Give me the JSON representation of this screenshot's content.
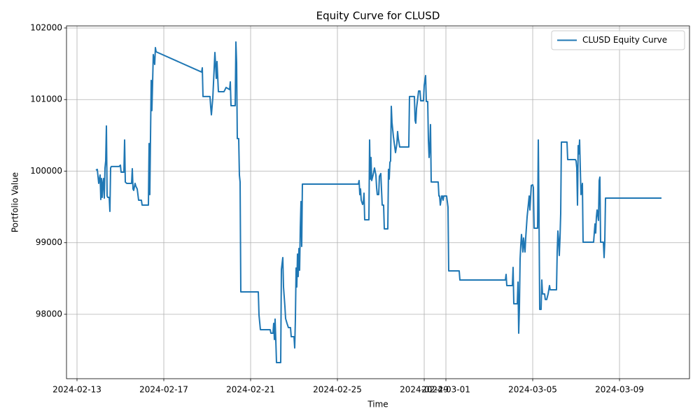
{
  "chart_data": {
    "type": "line",
    "title": "Equity Curve for CLUSD",
    "x_label": "Time",
    "y_label": "Portfolio Value",
    "grid": true,
    "legend": "upper right",
    "xlim": [
      "2024-02-12 12:23",
      "2024-03-12 05:24"
    ],
    "xticks": [
      "2024-02-13",
      "2024-02-17",
      "2024-02-21",
      "2024-02-25",
      "2024-02-29",
      "2024-03-01",
      "2024-03-05",
      "2024-03-09"
    ],
    "ylim": [
      97100,
      102029
    ],
    "yticks": [
      98000,
      99000,
      100000,
      101000,
      102000
    ],
    "x": [
      "2024-02-13 20:54",
      "2024-02-13 22:27",
      "2024-02-13 23:14",
      "2024-02-14 00:00",
      "2024-02-14 01:33",
      "2024-02-14 02:19",
      "2024-02-14 03:06",
      "2024-02-14 03:52",
      "2024-02-14 04:39",
      "2024-02-14 05:25",
      "2024-02-14 06:12",
      "2024-02-14 06:58",
      "2024-02-14 07:44",
      "2024-02-14 08:31",
      "2024-02-14 09:17",
      "2024-02-14 10:04",
      "2024-02-14 11:37",
      "2024-02-14 12:23",
      "2024-02-14 13:10",
      "2024-02-14 13:56",
      "2024-02-14 22:27",
      "2024-02-15 00:00",
      "2024-02-15 00:46",
      "2024-02-15 03:52",
      "2024-02-15 04:39",
      "2024-02-15 05:25",
      "2024-02-15 06:58",
      "2024-02-15 12:23",
      "2024-02-15 13:10",
      "2024-02-15 13:56",
      "2024-02-15 14:42",
      "2024-02-15 16:15",
      "2024-02-15 17:02",
      "2024-02-15 18:35",
      "2024-02-15 20:08",
      "2024-02-15 23:13",
      "2024-02-16 00:00",
      "2024-02-16 06:58",
      "2024-02-16 07:44",
      "2024-02-16 08:31",
      "2024-02-16 10:04",
      "2024-02-16 10:50",
      "2024-02-16 12:23",
      "2024-02-16 13:56",
      "2024-02-16 14:42",
      "2024-02-16 15:29",
      "2024-02-18 17:48",
      "2024-02-18 18:35",
      "2024-02-18 19:21",
      "2024-02-19 03:06",
      "2024-02-19 03:52",
      "2024-02-19 04:38",
      "2024-02-19 06:11",
      "2024-02-19 08:31",
      "2024-02-19 10:04",
      "2024-02-19 10:50",
      "2024-02-19 12:23",
      "2024-02-19 18:35",
      "2024-02-19 20:54",
      "2024-02-20 00:46",
      "2024-02-20 01:33",
      "2024-02-20 02:19",
      "2024-02-20 06:58",
      "2024-02-20 07:44",
      "2024-02-20 08:31",
      "2024-02-20 09:17",
      "2024-02-20 10:50",
      "2024-02-20 11:36",
      "2024-02-20 12:23",
      "2024-02-20 13:09",
      "2024-02-21 08:31",
      "2024-02-21 09:17",
      "2024-02-21 10:50",
      "2024-02-21 21:40",
      "2024-02-21 22:27",
      "2024-02-22 00:46",
      "2024-02-22 01:32",
      "2024-02-22 02:19",
      "2024-02-22 03:05",
      "2024-02-22 03:52",
      "2024-02-22 04:38",
      "2024-02-22 09:17",
      "2024-02-22 10:03",
      "2024-02-22 11:36",
      "2024-02-22 12:23",
      "2024-02-22 13:56",
      "2024-02-22 14:42",
      "2024-02-22 16:15",
      "2024-02-22 17:48",
      "2024-02-22 20:07",
      "2024-02-22 20:54",
      "2024-02-23 00:00",
      "2024-02-23 00:46",
      "2024-02-23 01:32",
      "2024-02-23 02:19",
      "2024-02-23 03:05",
      "2024-02-23 03:52",
      "2024-02-23 04:38",
      "2024-02-23 05:25",
      "2024-02-23 06:11",
      "2024-02-23 06:58",
      "2024-02-23 07:44",
      "2024-02-23 08:31",
      "2024-02-23 09:17",
      "2024-02-23 10:03",
      "2024-02-25 23:13",
      "2024-02-25 23:59",
      "2024-02-26 00:46",
      "2024-02-26 01:32",
      "2024-02-26 02:19",
      "2024-02-26 03:52",
      "2024-02-26 04:38",
      "2024-02-26 05:25",
      "2024-02-26 06:11",
      "2024-02-26 10:50",
      "2024-02-26 11:36",
      "2024-02-26 12:23",
      "2024-02-26 13:09",
      "2024-02-26 13:55",
      "2024-02-26 15:28",
      "2024-02-26 17:01",
      "2024-02-26 18:34",
      "2024-02-26 19:21",
      "2024-02-26 20:07",
      "2024-02-26 21:40",
      "2024-02-26 22:26",
      "2024-02-26 23:59",
      "2024-02-27 01:32",
      "2024-02-27 03:05",
      "2024-02-27 03:52",
      "2024-02-27 07:44",
      "2024-02-27 08:30",
      "2024-02-27 09:17",
      "2024-02-27 10:03",
      "2024-02-27 10:49",
      "2024-02-27 11:36",
      "2024-02-27 12:22",
      "2024-02-27 13:55",
      "2024-02-27 16:15",
      "2024-02-27 17:48",
      "2024-02-27 18:34",
      "2024-02-27 19:21",
      "2024-02-27 20:54",
      "2024-02-28 06:57",
      "2024-02-28 07:44",
      "2024-02-28 13:09",
      "2024-02-28 13:55",
      "2024-02-28 14:42",
      "2024-02-28 15:29",
      "2024-02-28 17:48",
      "2024-02-28 19:21",
      "2024-02-28 20:07",
      "2024-02-28 23:13",
      "2024-02-28 23:59",
      "2024-02-29 01:32",
      "2024-02-29 02:19",
      "2024-02-29 03:52",
      "2024-02-29 04:38",
      "2024-02-29 05:24",
      "2024-02-29 06:11",
      "2024-02-29 06:57",
      "2024-02-29 07:44",
      "2024-02-29 15:28",
      "2024-02-29 16:15",
      "2024-02-29 17:01",
      "2024-02-29 17:48",
      "2024-02-29 19:21",
      "2024-02-29 20:07",
      "2024-02-29 20:54",
      "2024-02-29 21:40",
      "2024-03-01 00:46",
      "2024-03-01 02:19",
      "2024-03-01 03:05",
      "2024-03-01 14:42",
      "2024-03-01 15:28",
      "2024-03-03 17:47",
      "2024-03-03 18:34",
      "2024-03-03 19:20",
      "2024-03-04 01:32",
      "2024-03-04 02:18",
      "2024-03-04 03:05",
      "2024-03-04 06:57",
      "2024-03-04 07:44",
      "2024-03-04 08:30",
      "2024-03-04 09:16",
      "2024-03-04 10:03",
      "2024-03-04 10:49",
      "2024-03-04 11:36",
      "2024-03-04 13:09",
      "2024-03-04 13:55",
      "2024-03-04 15:28",
      "2024-03-04 16:15",
      "2024-03-04 17:48",
      "2024-03-04 18:34",
      "2024-03-04 20:07",
      "2024-03-04 20:53",
      "2024-03-04 22:26",
      "2024-03-04 23:59",
      "2024-03-05 00:45",
      "2024-03-05 01:32",
      "2024-03-05 05:24",
      "2024-03-05 06:11",
      "2024-03-05 06:57",
      "2024-03-05 07:44",
      "2024-03-05 09:17",
      "2024-03-05 10:03",
      "2024-03-05 10:49",
      "2024-03-05 13:09",
      "2024-03-05 13:55",
      "2024-03-05 15:28",
      "2024-03-05 17:01",
      "2024-03-05 18:34",
      "2024-03-05 19:20",
      "2024-03-06 02:18",
      "2024-03-06 03:05",
      "2024-03-06 03:51",
      "2024-03-06 04:38",
      "2024-03-06 05:24",
      "2024-03-06 06:11",
      "2024-03-06 06:57",
      "2024-03-06 07:43",
      "2024-03-06 13:55",
      "2024-03-06 14:41",
      "2024-03-06 23:12",
      "2024-03-06 23:58",
      "2024-03-07 00:45",
      "2024-03-07 01:32",
      "2024-03-07 02:18",
      "2024-03-07 03:05",
      "2024-03-07 03:51",
      "2024-03-07 04:37",
      "2024-03-07 05:24",
      "2024-03-07 06:57",
      "2024-03-07 07:43",
      "2024-03-07 16:14",
      "2024-03-07 19:20",
      "2024-03-07 20:06",
      "2024-03-07 20:53",
      "2024-03-07 21:39",
      "2024-03-07 22:26",
      "2024-03-07 23:12",
      "2024-03-08 00:45",
      "2024-03-08 01:32",
      "2024-03-08 02:18",
      "2024-03-08 03:05",
      "2024-03-08 06:10",
      "2024-03-08 06:57",
      "2024-03-08 07:43",
      "2024-03-08 08:30",
      "2024-03-10 22:26"
    ],
    "series": [
      {
        "name": "CLUSD Equity Curve",
        "color": "#1f77b4",
        "values": [
          100015,
          100024,
          99927,
          99829,
          99946,
          99604,
          99897,
          99633,
          99829,
          99897,
          99623,
          100044,
          100142,
          100631,
          99653,
          99633,
          99633,
          99438,
          100044,
          100064,
          100064,
          100083,
          99985,
          99985,
          100435,
          99848,
          99829,
          99829,
          100034,
          99751,
          99731,
          99829,
          99790,
          99751,
          99594,
          99594,
          99526,
          99526,
          100386,
          99672,
          101267,
          100846,
          101628,
          101491,
          101726,
          101667,
          101384,
          101443,
          101042,
          101042,
          100895,
          100787,
          101022,
          101658,
          101296,
          101531,
          101110,
          101110,
          101169,
          101139,
          101247,
          100914,
          100914,
          101804,
          101511,
          100455,
          100455,
          99946,
          99848,
          98313,
          98313,
          97990,
          97785,
          97785,
          97736,
          97736,
          97873,
          97648,
          97932,
          97638,
          97325,
          97325,
          98626,
          98792,
          98381,
          98108,
          97941,
          97873,
          97814,
          97814,
          97687,
          97687,
          97530,
          97932,
          98646,
          98381,
          98841,
          98528,
          98919,
          98616,
          99213,
          99575,
          98949,
          99819,
          99819,
          99819,
          99868,
          99672,
          99751,
          99594,
          99535,
          99555,
          99692,
          99320,
          99320,
          100435,
          99888,
          100191,
          99868,
          99946,
          100044,
          99946,
          99770,
          99672,
          99672,
          99927,
          99966,
          99526,
          99526,
          99193,
          99193,
          100024,
          99888,
          100122,
          100142,
          100905,
          100680,
          100484,
          100259,
          100386,
          100553,
          100455,
          100337,
          100337,
          101042,
          101042,
          100709,
          100670,
          100875,
          101120,
          101120,
          100983,
          100983,
          101198,
          101335,
          100973,
          100973,
          100435,
          100191,
          100337,
          100650,
          99848,
          99848,
          99653,
          99653,
          99526,
          99653,
          99653,
          99594,
          99653,
          99653,
          99496,
          98606,
          98606,
          98479,
          98479,
          98557,
          98401,
          98401,
          98655,
          98147,
          98147,
          98450,
          97736,
          98089,
          98773,
          98968,
          99115,
          98870,
          99066,
          98870,
          99066,
          99359,
          99457,
          99653,
          99457,
          99800,
          99809,
          99770,
          99203,
          99203,
          100435,
          99399,
          98068,
          98068,
          98479,
          98284,
          98284,
          98206,
          98206,
          98284,
          98401,
          98342,
          98342,
          98870,
          99164,
          99037,
          98822,
          99066,
          99408,
          100406,
          100406,
          100161,
          100161,
          100142,
          100044,
          99526,
          100357,
          100240,
          100435,
          100044,
          99672,
          99829,
          99007,
          99007,
          99007,
          99135,
          99262,
          99135,
          99359,
          99457,
          99311,
          99868,
          99917,
          99007,
          99007,
          98792,
          99017,
          99623,
          99623
        ]
      }
    ]
  }
}
